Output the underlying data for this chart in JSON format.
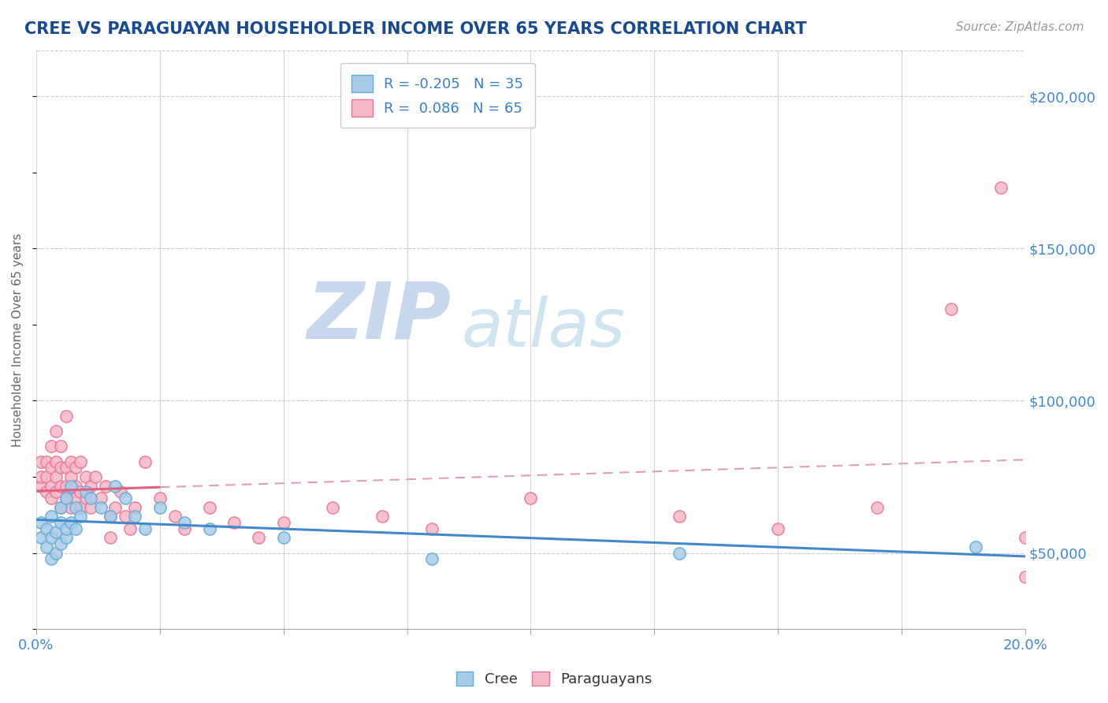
{
  "title": "CREE VS PARAGUAYAN HOUSEHOLDER INCOME OVER 65 YEARS CORRELATION CHART",
  "source": "Source: ZipAtlas.com",
  "ylabel": "Householder Income Over 65 years",
  "xlim": [
    0.0,
    0.2
  ],
  "ylim": [
    25000,
    215000
  ],
  "xticks": [
    0.0,
    0.025,
    0.05,
    0.075,
    0.1,
    0.125,
    0.15,
    0.175,
    0.2
  ],
  "ytick_right_labels": [
    "$50,000",
    "$100,000",
    "$150,000",
    "$200,000"
  ],
  "ytick_right_values": [
    50000,
    100000,
    150000,
    200000
  ],
  "cree_color": "#a8cce8",
  "cree_edge": "#6aaad4",
  "paraguayan_color": "#f5b8c8",
  "paraguayan_edge": "#e87898",
  "cree_R": -0.205,
  "cree_N": 35,
  "paraguayan_R": 0.086,
  "paraguayan_N": 65,
  "cree_trend_color": "#4488cc",
  "paraguayan_trend_color": "#e06080",
  "paraguayan_trend_dashed_color": "#e0a0b0",
  "watermark_zip": "ZIP",
  "watermark_atlas": "atlas",
  "watermark_color": "#c8d8ec",
  "background_color": "#ffffff",
  "grid_color": "#cccccc",
  "title_color": "#1a4a8a",
  "cree_scatter_x": [
    0.001,
    0.001,
    0.002,
    0.002,
    0.003,
    0.003,
    0.003,
    0.004,
    0.004,
    0.005,
    0.005,
    0.005,
    0.006,
    0.006,
    0.006,
    0.007,
    0.007,
    0.008,
    0.008,
    0.009,
    0.01,
    0.011,
    0.013,
    0.015,
    0.016,
    0.018,
    0.02,
    0.022,
    0.025,
    0.03,
    0.035,
    0.05,
    0.08,
    0.13,
    0.19
  ],
  "cree_scatter_y": [
    55000,
    60000,
    52000,
    58000,
    48000,
    55000,
    62000,
    50000,
    57000,
    53000,
    60000,
    65000,
    55000,
    58000,
    68000,
    60000,
    72000,
    58000,
    65000,
    62000,
    70000,
    68000,
    65000,
    62000,
    72000,
    68000,
    62000,
    58000,
    65000,
    60000,
    58000,
    55000,
    48000,
    50000,
    52000
  ],
  "para_scatter_x": [
    0.001,
    0.001,
    0.001,
    0.002,
    0.002,
    0.002,
    0.003,
    0.003,
    0.003,
    0.003,
    0.004,
    0.004,
    0.004,
    0.004,
    0.005,
    0.005,
    0.005,
    0.005,
    0.006,
    0.006,
    0.006,
    0.006,
    0.007,
    0.007,
    0.007,
    0.007,
    0.008,
    0.008,
    0.008,
    0.009,
    0.009,
    0.009,
    0.01,
    0.01,
    0.011,
    0.011,
    0.012,
    0.013,
    0.014,
    0.015,
    0.015,
    0.016,
    0.017,
    0.018,
    0.019,
    0.02,
    0.022,
    0.025,
    0.028,
    0.03,
    0.035,
    0.04,
    0.045,
    0.05,
    0.06,
    0.07,
    0.08,
    0.1,
    0.13,
    0.15,
    0.17,
    0.185,
    0.195,
    0.2,
    0.2
  ],
  "para_scatter_y": [
    72000,
    75000,
    80000,
    70000,
    75000,
    80000,
    68000,
    72000,
    78000,
    85000,
    70000,
    75000,
    80000,
    90000,
    65000,
    72000,
    78000,
    85000,
    68000,
    72000,
    78000,
    95000,
    65000,
    70000,
    75000,
    80000,
    68000,
    72000,
    78000,
    65000,
    70000,
    80000,
    68000,
    75000,
    65000,
    72000,
    75000,
    68000,
    72000,
    55000,
    62000,
    65000,
    70000,
    62000,
    58000,
    65000,
    80000,
    68000,
    62000,
    58000,
    65000,
    60000,
    55000,
    60000,
    65000,
    62000,
    58000,
    68000,
    62000,
    58000,
    65000,
    130000,
    170000,
    55000,
    42000
  ]
}
